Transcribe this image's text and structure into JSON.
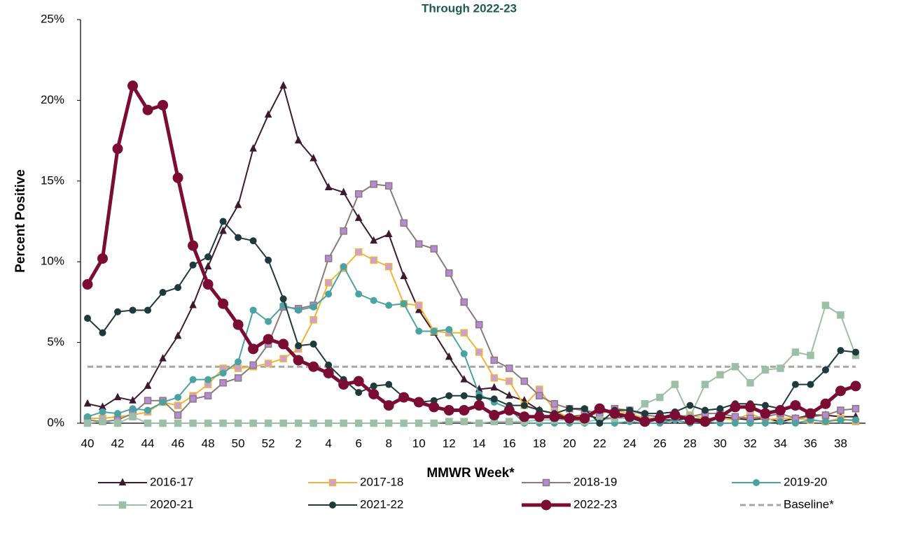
{
  "chart_data": {
    "type": "line",
    "title": "Through 2022-23",
    "x_label": "MMWR Week*",
    "y_label": "Percent Positive",
    "categories": [
      "40",
      null,
      "42",
      null,
      "44",
      null,
      "46",
      null,
      "48",
      null,
      "50",
      null,
      "52",
      null,
      "2",
      null,
      "4",
      null,
      "6",
      null,
      "8",
      null,
      "10",
      null,
      "12",
      null,
      "14",
      null,
      "16",
      null,
      "18",
      null,
      "20",
      null,
      "22",
      null,
      "24",
      null,
      "26",
      null,
      "28",
      null,
      "30",
      null,
      "32",
      null,
      "34",
      null,
      "36",
      null,
      "38",
      null
    ],
    "ylim": [
      0,
      25
    ],
    "yticks": [
      {
        "value": 0,
        "label": "0%"
      },
      {
        "value": 5,
        "label": "5%"
      },
      {
        "value": 10,
        "label": "10%"
      },
      {
        "value": 15,
        "label": "15%"
      },
      {
        "value": 20,
        "label": "20%"
      },
      {
        "value": 25,
        "label": "25%"
      }
    ],
    "series": [
      {
        "name": "2016-17",
        "color": "#3d1a2e",
        "marker": "triangle",
        "marker_fill": "#3d1a2e",
        "width": 2,
        "values": [
          1.2,
          1.0,
          1.6,
          1.4,
          2.3,
          4.0,
          5.4,
          7.3,
          9.7,
          11.9,
          13.5,
          17.0,
          19.1,
          20.9,
          17.5,
          16.4,
          14.6,
          14.3,
          12.7,
          11.3,
          11.7,
          9.1,
          7.0,
          5.6,
          4.1,
          2.7,
          2.1,
          2.2,
          1.7,
          1.4,
          0.8,
          0.6,
          0.4,
          0.5,
          0.3,
          0.3,
          0.5,
          0.3,
          0.2,
          0.2,
          0.3,
          0.2,
          0.4,
          0.3,
          0.2,
          0.3,
          0.1,
          0.3,
          0.5,
          0.5,
          0.4,
          0.4
        ]
      },
      {
        "name": "2017-18",
        "color": "#f5b335",
        "marker": "square",
        "marker_fill": "#c9a0dc",
        "width": 2,
        "values": [
          0.3,
          0.3,
          0.4,
          0.5,
          0.7,
          1.3,
          1.1,
          1.7,
          2.4,
          3.4,
          3.4,
          3.5,
          3.7,
          4.0,
          4.6,
          6.4,
          8.7,
          9.6,
          10.6,
          10.1,
          9.7,
          7.4,
          7.3,
          5.7,
          5.6,
          5.6,
          4.4,
          2.8,
          2.6,
          1.1,
          2.1,
          0.8,
          0.3,
          0.5,
          0.6,
          0.8,
          0.6,
          0.3,
          0.3,
          0.4,
          0.5,
          0.3,
          0.3,
          0.2,
          0.6,
          0.2,
          0.3,
          0.3,
          0.2,
          0.1,
          0.3,
          0.1
        ]
      },
      {
        "name": "2018-19",
        "color": "#8c7a7a",
        "marker": "square",
        "marker_fill": "#b58bd6",
        "width": 2,
        "values": [
          0.2,
          0.1,
          0.2,
          0.6,
          1.4,
          1.4,
          0.5,
          1.5,
          1.7,
          2.5,
          2.8,
          3.6,
          4.9,
          7.2,
          7.1,
          7.3,
          10.2,
          11.9,
          14.2,
          14.8,
          14.7,
          12.4,
          11.1,
          10.8,
          9.3,
          7.5,
          6.1,
          3.9,
          3.4,
          2.6,
          1.7,
          1.2,
          0.9,
          0.8,
          0.6,
          0.9,
          0.8,
          0.5,
          0.4,
          0.5,
          0.4,
          0.6,
          0.6,
          0.4,
          0.3,
          0.4,
          0.6,
          0.3,
          0.4,
          0.5,
          0.8,
          0.9
        ]
      },
      {
        "name": "2019-20",
        "color": "#4aa3a2",
        "marker": "circle",
        "marker_fill": "#4aa3a2",
        "width": 2,
        "values": [
          0.4,
          0.7,
          0.6,
          0.9,
          0.8,
          1.3,
          1.6,
          2.7,
          2.7,
          3.1,
          3.8,
          7.0,
          6.3,
          7.3,
          7.0,
          7.2,
          8.0,
          9.7,
          8.0,
          7.6,
          7.3,
          7.4,
          5.7,
          5.7,
          5.8,
          4.3,
          1.8,
          1.3,
          0.9,
          0.0,
          0.0,
          0.0,
          0.0,
          0.0,
          0.0,
          0.0,
          0.1,
          0.0,
          0.0,
          0.2,
          0.0,
          0.1,
          0.0,
          0.0,
          0.0,
          0.0,
          0.1,
          0.0,
          0.2,
          0.1,
          0.2,
          0.2
        ]
      },
      {
        "name": "2020-21",
        "color": "#9dbfa8",
        "marker": "square",
        "marker_fill": "#9dbfa8",
        "width": 2,
        "values": [
          0.0,
          0.1,
          0.0,
          0.4,
          0.0,
          0.0,
          0.0,
          0.0,
          0.0,
          0.0,
          0.0,
          0.0,
          0.0,
          0.0,
          0.0,
          0.0,
          0.0,
          0.0,
          0.0,
          0.0,
          0.0,
          0.0,
          0.0,
          0.0,
          0.1,
          0.1,
          0.0,
          0.1,
          0.1,
          0.1,
          0.2,
          0.2,
          0.2,
          0.1,
          0.2,
          0.3,
          0.3,
          1.2,
          1.6,
          2.4,
          0.4,
          2.4,
          3.0,
          3.5,
          2.5,
          3.3,
          3.4,
          4.4,
          4.2,
          7.3,
          6.7,
          4.2
        ]
      },
      {
        "name": "2021-22",
        "color": "#1e3a3a",
        "marker": "circle",
        "marker_fill": "#1e3a3a",
        "width": 2,
        "values": [
          6.5,
          5.6,
          6.9,
          7.0,
          7.0,
          8.1,
          8.4,
          9.8,
          10.3,
          12.5,
          11.5,
          11.3,
          10.1,
          7.7,
          4.8,
          4.9,
          3.6,
          2.7,
          1.9,
          2.3,
          2.4,
          1.6,
          1.3,
          1.4,
          1.7,
          1.7,
          1.6,
          1.5,
          1.1,
          1.1,
          0.8,
          0.6,
          0.9,
          0.9,
          0.0,
          0.8,
          0.8,
          0.6,
          0.6,
          0.7,
          1.1,
          0.8,
          0.9,
          1.2,
          1.2,
          1.1,
          0.9,
          2.4,
          2.4,
          3.3,
          4.5,
          4.4
        ]
      },
      {
        "name": "2022-23",
        "color": "#7b0c33",
        "marker": "circle",
        "marker_fill": "#7b0c33",
        "width": 5,
        "values": [
          8.6,
          10.2,
          17.0,
          20.9,
          19.4,
          19.7,
          15.2,
          11.0,
          8.6,
          7.4,
          6.1,
          4.6,
          5.2,
          4.9,
          3.9,
          3.5,
          3.1,
          2.4,
          2.6,
          1.8,
          1.1,
          1.6,
          1.3,
          1.0,
          0.8,
          0.8,
          1.1,
          0.5,
          0.8,
          0.4,
          0.4,
          0.4,
          0.3,
          0.3,
          0.9,
          0.6,
          0.4,
          0.1,
          0.3,
          0.5,
          0.2,
          0.1,
          0.4,
          1.0,
          1.0,
          0.6,
          0.8,
          1.1,
          0.6,
          1.2,
          2.0,
          2.3
        ]
      }
    ],
    "baseline": {
      "name": "Baseline*",
      "value": 3.5,
      "color": "#a6a6a6"
    }
  }
}
